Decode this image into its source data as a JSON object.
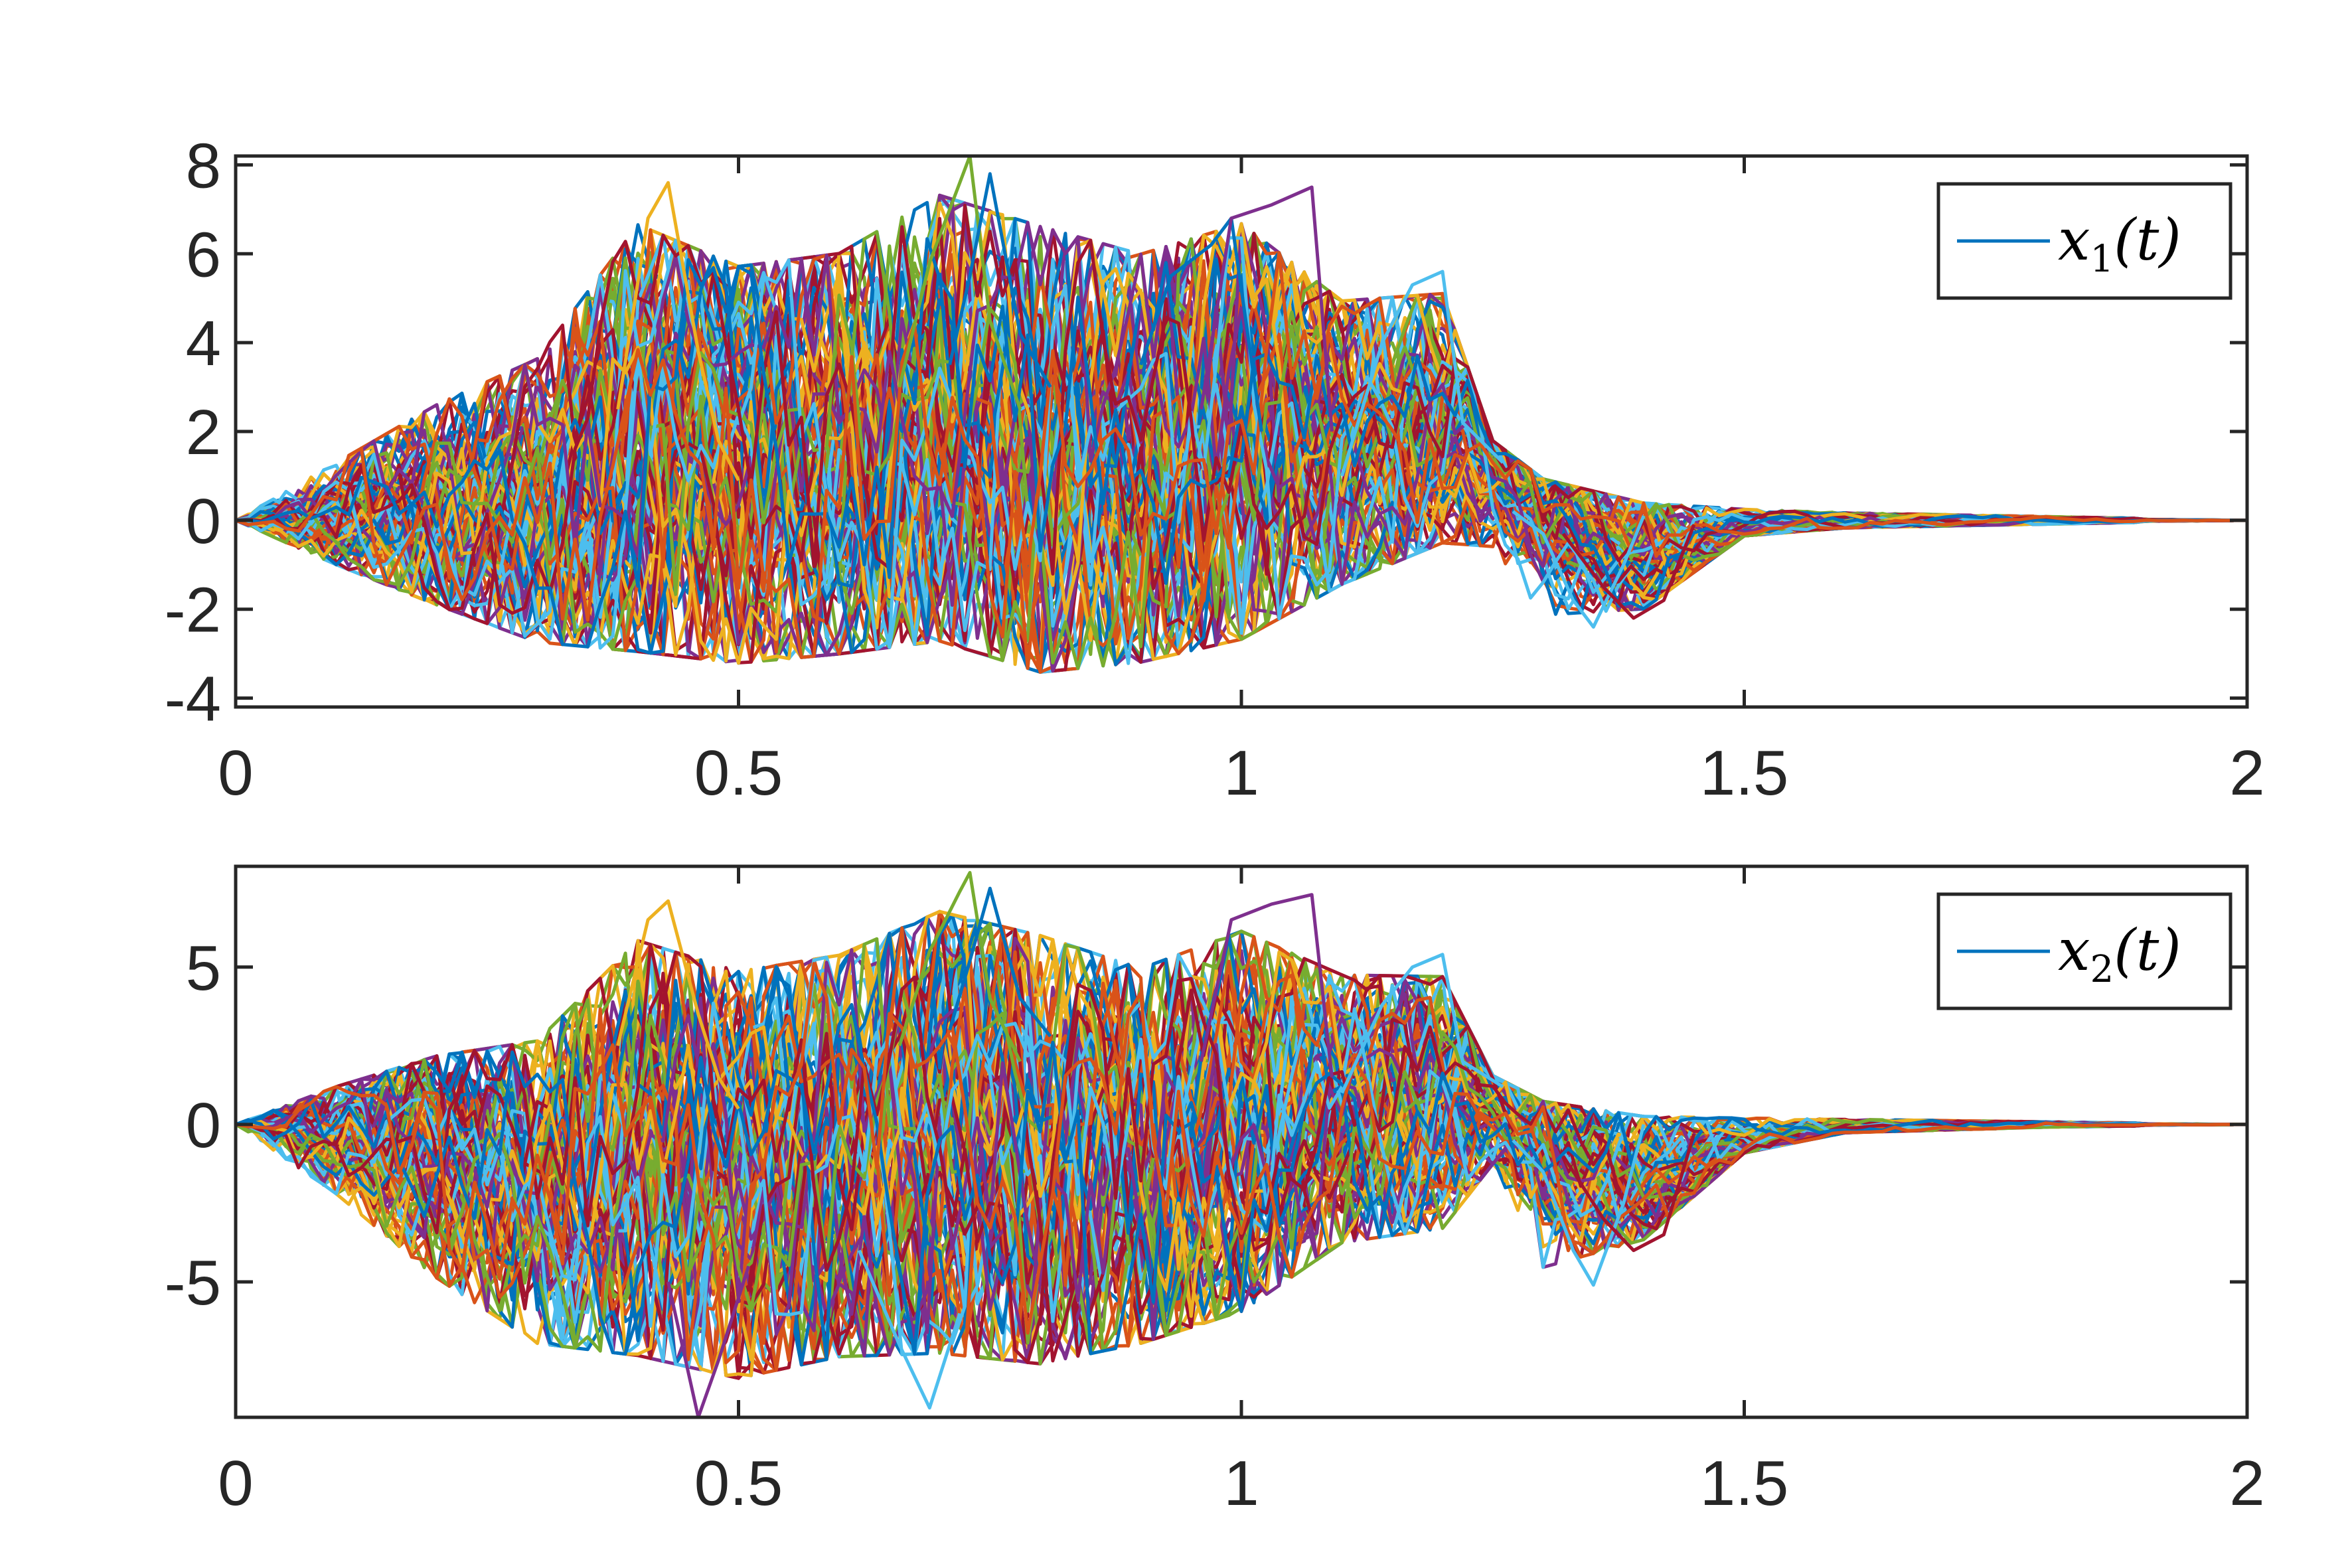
{
  "figure": {
    "palette": [
      "#0072BD",
      "#D95319",
      "#EDB120",
      "#7E2F8E",
      "#77AC30",
      "#4DBEEE",
      "#A2142F"
    ],
    "axis_color": "#262626",
    "background": "#ffffff"
  },
  "chart_data": [
    {
      "type": "line",
      "panel": "top",
      "legend": {
        "label": "x1(t)",
        "symbol": "x",
        "subscript": "1",
        "suffix": "(t)",
        "position": "top-right",
        "color": "#0072BD"
      },
      "xlim": [
        0,
        2
      ],
      "ylim": [
        -4.2,
        8.2
      ],
      "xticks": [
        0,
        0.5,
        1,
        1.5,
        2
      ],
      "xtick_labels": [
        "0",
        "0.5",
        "1",
        "1.5",
        "2"
      ],
      "yticks": [
        -4,
        -2,
        0,
        2,
        4,
        6,
        8
      ],
      "ytick_labels": [
        "-4",
        "-2",
        "0",
        "2",
        "4",
        "6",
        "8"
      ],
      "grid": false,
      "trajectories": 100,
      "envelope": {
        "t": [
          0,
          0.1,
          0.2,
          0.3,
          0.4,
          0.5,
          0.6,
          0.7,
          0.8,
          0.9,
          1.0,
          1.1,
          1.2,
          1.25,
          1.3,
          1.4,
          1.5,
          1.6,
          1.8,
          2.0
        ],
        "upper": [
          0,
          1.5,
          3.0,
          4.2,
          7.5,
          6.5,
          6.8,
          8.2,
          7.5,
          6.8,
          7.5,
          5.5,
          5.6,
          2.0,
          1.2,
          0.6,
          0.3,
          0.2,
          0.1,
          0
        ],
        "lower": [
          0,
          -1.2,
          -2.3,
          -3.3,
          -3.8,
          -4.0,
          -3.8,
          -3.6,
          -4.3,
          -4.0,
          -3.5,
          -2.0,
          -1.0,
          -0.8,
          -2.4,
          -2.2,
          -0.4,
          -0.2,
          -0.1,
          0
        ]
      },
      "highlights": [
        {
          "color": "#EDB120",
          "t": [
            0.38,
            0.41,
            0.43,
            0.46,
            0.48,
            0.5
          ],
          "y": [
            2.5,
            6.8,
            7.6,
            3.8,
            1.8,
            0.9
          ]
        },
        {
          "color": "#77AC30",
          "t": [
            0.66,
            0.69,
            0.72,
            0.73,
            0.75,
            0.78
          ],
          "y": [
            3.0,
            5.8,
            7.6,
            8.2,
            4.5,
            2.5
          ]
        },
        {
          "color": "#0072BD",
          "t": [
            0.71,
            0.73,
            0.75,
            0.78,
            0.81
          ],
          "y": [
            3.5,
            5.5,
            7.8,
            4.2,
            3.0
          ]
        },
        {
          "color": "#0072BD",
          "t": [
            0.9,
            0.93,
            0.97,
            0.99,
            1.02
          ],
          "y": [
            3.5,
            5.5,
            6.2,
            6.8,
            2.0
          ]
        },
        {
          "color": "#7E2F8E",
          "t": [
            0.96,
            0.99,
            1.03,
            1.07,
            1.09
          ],
          "y": [
            2.5,
            6.8,
            7.1,
            7.5,
            2.0
          ]
        },
        {
          "color": "#4DBEEE",
          "t": [
            1.1,
            1.14,
            1.17,
            1.2,
            1.22,
            1.26
          ],
          "y": [
            1.0,
            4.0,
            5.3,
            5.6,
            2.2,
            1.3
          ]
        },
        {
          "color": "#4DBEEE",
          "t": [
            1.27,
            1.3,
            1.33,
            1.35,
            1.38,
            1.4
          ],
          "y": [
            0.2,
            -0.3,
            -1.8,
            -2.4,
            -1.0,
            0.1
          ]
        },
        {
          "color": "#A2142F",
          "t": [
            1.32,
            1.36,
            1.39,
            1.42,
            1.45
          ],
          "y": [
            -0.3,
            -1.5,
            -2.2,
            -1.8,
            -0.1
          ]
        }
      ]
    },
    {
      "type": "line",
      "panel": "bottom",
      "legend": {
        "label": "x2(t)",
        "symbol": "x",
        "subscript": "2",
        "suffix": "(t)",
        "position": "top-right",
        "color": "#0072BD"
      },
      "xlim": [
        0,
        2
      ],
      "ylim": [
        -9.3,
        8.2
      ],
      "xticks": [
        0,
        0.5,
        1,
        1.5,
        2
      ],
      "xtick_labels": [
        "0",
        "0.5",
        "1",
        "1.5",
        "2"
      ],
      "yticks": [
        -5,
        0,
        5
      ],
      "ytick_labels": [
        "-5",
        "0",
        "5"
      ],
      "grid": false,
      "trajectories": 100,
      "envelope": {
        "t": [
          0,
          0.1,
          0.2,
          0.3,
          0.4,
          0.5,
          0.6,
          0.7,
          0.8,
          0.9,
          1.0,
          1.1,
          1.2,
          1.25,
          1.3,
          1.4,
          1.5,
          1.6,
          1.8,
          2.0
        ],
        "upper": [
          0,
          1.5,
          2.8,
          3.5,
          7.0,
          6.0,
          6.5,
          8.0,
          7.2,
          6.0,
          7.2,
          5.5,
          5.4,
          1.8,
          1.2,
          0.6,
          0.3,
          0.2,
          0.1,
          0
        ],
        "lower": [
          0,
          -2.5,
          -5.5,
          -7.8,
          -8.5,
          -9.2,
          -8.5,
          -8.5,
          -8.8,
          -8.0,
          -7.0,
          -4.5,
          -4.0,
          -1.5,
          -5.0,
          -4.0,
          -1.0,
          -0.3,
          -0.1,
          0
        ]
      },
      "highlights": [
        {
          "color": "#EDB120",
          "t": [
            0.38,
            0.41,
            0.43,
            0.46,
            0.48,
            0.5
          ],
          "y": [
            2.5,
            6.5,
            7.1,
            3.5,
            1.5,
            0.5
          ]
        },
        {
          "color": "#77AC30",
          "t": [
            0.66,
            0.69,
            0.72,
            0.73,
            0.75,
            0.78
          ],
          "y": [
            2.5,
            5.5,
            7.4,
            8.0,
            4.0,
            2.0
          ]
        },
        {
          "color": "#0072BD",
          "t": [
            0.71,
            0.73,
            0.75,
            0.78,
            0.81
          ],
          "y": [
            3.0,
            5.2,
            7.5,
            4.0,
            2.8
          ]
        },
        {
          "color": "#7E2F8E",
          "t": [
            0.96,
            0.99,
            1.03,
            1.07,
            1.09
          ],
          "y": [
            2.0,
            6.5,
            7.0,
            7.3,
            1.5
          ]
        },
        {
          "color": "#4DBEEE",
          "t": [
            1.1,
            1.14,
            1.17,
            1.2,
            1.22,
            1.26
          ],
          "y": [
            1.0,
            3.8,
            5.0,
            5.4,
            2.0,
            1.2
          ]
        },
        {
          "color": "#4DBEEE",
          "t": [
            1.27,
            1.3,
            1.33,
            1.35,
            1.38,
            1.4
          ],
          "y": [
            -0.5,
            -1.5,
            -4.0,
            -5.1,
            -2.5,
            0.0
          ]
        },
        {
          "color": "#A2142F",
          "t": [
            1.32,
            1.36,
            1.39,
            1.42,
            1.45
          ],
          "y": [
            -1.0,
            -3.0,
            -4.0,
            -3.5,
            -0.3
          ]
        },
        {
          "color": "#4DBEEE",
          "t": [
            0.62,
            0.66,
            0.69,
            0.72
          ],
          "y": [
            -4.0,
            -7.0,
            -9.0,
            -6.0
          ]
        },
        {
          "color": "#7E2F8E",
          "t": [
            0.43,
            0.46,
            0.48,
            0.51
          ],
          "y": [
            -5.0,
            -9.3,
            -7.5,
            -4.5
          ]
        }
      ]
    }
  ]
}
